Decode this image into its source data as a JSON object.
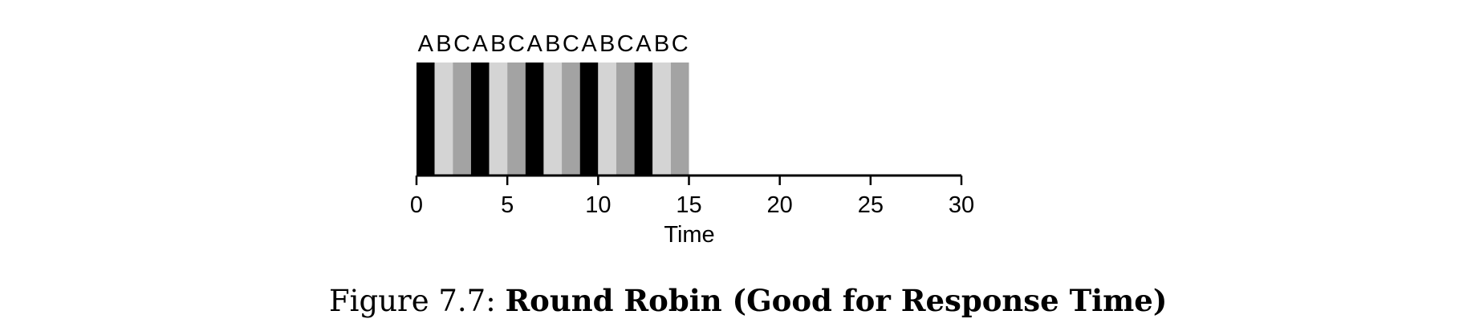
{
  "chart_data": {
    "type": "bar",
    "chart_kind": "timeline (round-robin schedule)",
    "xlabel": "Time",
    "xlim": [
      0,
      30
    ],
    "xticks": [
      0,
      5,
      10,
      15,
      20,
      25,
      30
    ],
    "slot_labels": "ABCABCABCABCABC",
    "segments": [
      {
        "job": "A",
        "start": 0,
        "end": 1
      },
      {
        "job": "B",
        "start": 1,
        "end": 2
      },
      {
        "job": "C",
        "start": 2,
        "end": 3
      },
      {
        "job": "A",
        "start": 3,
        "end": 4
      },
      {
        "job": "B",
        "start": 4,
        "end": 5
      },
      {
        "job": "C",
        "start": 5,
        "end": 6
      },
      {
        "job": "A",
        "start": 6,
        "end": 7
      },
      {
        "job": "B",
        "start": 7,
        "end": 8
      },
      {
        "job": "C",
        "start": 8,
        "end": 9
      },
      {
        "job": "A",
        "start": 9,
        "end": 10
      },
      {
        "job": "B",
        "start": 10,
        "end": 11
      },
      {
        "job": "C",
        "start": 11,
        "end": 12
      },
      {
        "job": "A",
        "start": 12,
        "end": 13
      },
      {
        "job": "B",
        "start": 13,
        "end": 14
      },
      {
        "job": "C",
        "start": 14,
        "end": 15
      }
    ],
    "job_colors": {
      "A": "#000000",
      "B": "#d4d4d4",
      "C": "#a3a3a3"
    },
    "grid": false
  },
  "caption": {
    "prefix": "Figure 7.7: ",
    "title": "Round Robin (Good for Response Time)"
  }
}
